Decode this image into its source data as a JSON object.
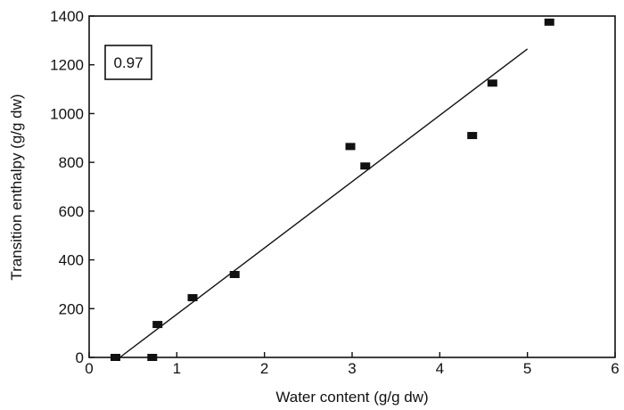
{
  "chart_data": {
    "type": "scatter",
    "title": "",
    "xlabel": "Water content (g/g dw)",
    "ylabel": "Transition enthalpy (g/g dw)",
    "xlim": [
      0,
      6
    ],
    "ylim": [
      0,
      1400
    ],
    "x_ticks": [
      0,
      1,
      2,
      3,
      4,
      5,
      6
    ],
    "y_ticks": [
      0,
      200,
      400,
      600,
      800,
      1000,
      1200,
      1400
    ],
    "grid": false,
    "series": [
      {
        "marker": "square",
        "color": "#111111",
        "points": [
          {
            "x": 0.3,
            "y": 0
          },
          {
            "x": 0.72,
            "y": 0
          },
          {
            "x": 0.78,
            "y": 135
          },
          {
            "x": 1.18,
            "y": 245
          },
          {
            "x": 1.66,
            "y": 340
          },
          {
            "x": 2.98,
            "y": 865
          },
          {
            "x": 3.15,
            "y": 785
          },
          {
            "x": 4.37,
            "y": 910
          },
          {
            "x": 4.6,
            "y": 1125
          },
          {
            "x": 5.25,
            "y": 1375
          }
        ]
      }
    ],
    "fit_line": {
      "x": [
        0.35,
        5.0
      ],
      "y": [
        0,
        1265
      ]
    },
    "annotation": "0.97"
  }
}
